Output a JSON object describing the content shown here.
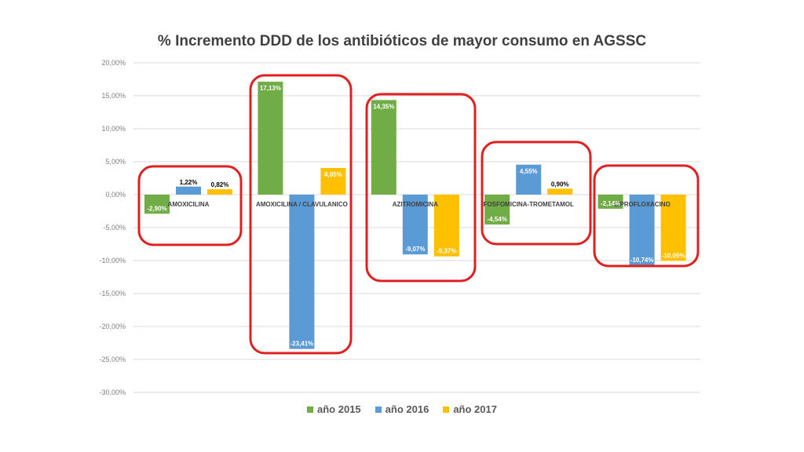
{
  "chart_data": {
    "type": "bar",
    "title": "% Incremento DDD de los antibióticos de mayor consumo en AGSSC",
    "categories": [
      "AMOXICILINA",
      "AMOXICILINA / CLAVULANICO",
      "AZITROMICINA",
      "FOSFOMICINA-TROMETAMOL",
      "CIPROFLOXACINO"
    ],
    "series": [
      {
        "name": "año 2015",
        "color": "#70ad47",
        "values": [
          -2.9,
          17.13,
          14.35,
          -4.54,
          -2.14
        ],
        "labels": [
          "-2,90%",
          "17,13%",
          "14,35%",
          "-4,54%",
          "-2,14%"
        ]
      },
      {
        "name": "año 2016",
        "color": "#5b9bd5",
        "values": [
          1.22,
          -23.41,
          -9.07,
          4.55,
          -10.74
        ],
        "labels": [
          "1,22%",
          "-23,41%",
          "-9,07%",
          "4,55%",
          "-10,74%"
        ]
      },
      {
        "name": "año 2017",
        "color": "#ffc000",
        "values": [
          0.82,
          4.05,
          -9.37,
          0.9,
          -10.05
        ],
        "labels": [
          "0,82%",
          "4,05%",
          "-9,37%",
          "0,90%",
          "-10,05%"
        ]
      }
    ],
    "yticks": [
      "20,00%",
      "15,00%",
      "10,00%",
      "5,00%",
      "0,00%",
      "-5,00%",
      "-10,00%",
      "-15,00%",
      "-20,00%",
      "-25,00%",
      "-30,00%"
    ],
    "ylim": [
      -30,
      20
    ],
    "grid": true,
    "legend": "bottom",
    "highlight_color": "#e02020"
  }
}
